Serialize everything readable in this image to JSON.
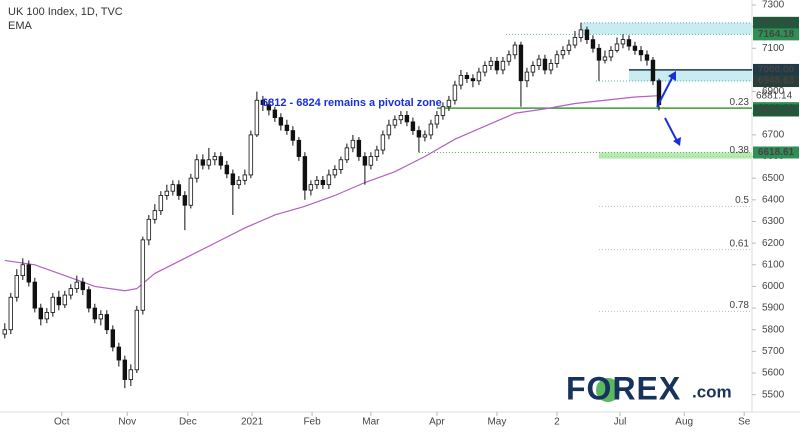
{
  "chart_data": {
    "type": "candlestick",
    "title": "UK 100 Index, 1D, TVC",
    "subtitle": "EMA",
    "annotation": "6812 - 6824 remains a pivotal zone",
    "watermark": {
      "brand": "FOREX",
      "suffix": ".com"
    },
    "up_color": "#ffffff",
    "down_color": "#111111",
    "open": [
      5780,
      5800,
      5950,
      6050,
      6100,
      6020,
      5900,
      5850,
      5880,
      5950,
      5915,
      5960,
      5990,
      6020,
      5985,
      5900,
      5850,
      5870,
      5800,
      5720,
      5660,
      5570,
      5615,
      5890,
      6215,
      6310,
      6350,
      6420,
      6440,
      6470,
      6420,
      6375,
      6500,
      6585,
      6560,
      6585,
      6600,
      6560,
      6520,
      6470,
      6490,
      6515,
      6700,
      6860,
      6840,
      6815,
      6780,
      6745,
      6720,
      6675,
      6600,
      6445,
      6470,
      6490,
      6470,
      6515,
      6540,
      6585,
      6640,
      6675,
      6600,
      6560,
      6600,
      6630,
      6700,
      6745,
      6770,
      6790,
      6760,
      6720,
      6690,
      6700,
      6750,
      6790,
      6830,
      6860,
      6930,
      6975,
      6960,
      6950,
      6990,
      7020,
      7040,
      7000,
      7040,
      7070,
      7115,
      6950,
      6990,
      7020,
      7050,
      7000,
      7030,
      7070,
      7090,
      7115,
      7150,
      7185,
      7140,
      7100,
      7045,
      7060,
      7090,
      7120,
      7140,
      7110,
      7090,
      7070,
      7045,
      6950
    ],
    "high": [
      5830,
      5970,
      6080,
      6130,
      6120,
      6040,
      5920,
      5900,
      5970,
      5980,
      5980,
      6010,
      6050,
      6040,
      6000,
      5920,
      5890,
      5890,
      5820,
      5740,
      5680,
      5640,
      5910,
      6230,
      6330,
      6380,
      6440,
      6470,
      6490,
      6490,
      6440,
      6520,
      6610,
      6610,
      6640,
      6620,
      6620,
      6580,
      6540,
      6510,
      6540,
      6720,
      6900,
      6880,
      6860,
      6830,
      6800,
      6770,
      6740,
      6690,
      6620,
      6490,
      6510,
      6510,
      6540,
      6560,
      6600,
      6660,
      6700,
      6690,
      6620,
      6620,
      6650,
      6720,
      6770,
      6790,
      6810,
      6810,
      6780,
      6740,
      6720,
      6770,
      6810,
      6850,
      6880,
      6950,
      7000,
      6990,
      6980,
      7010,
      7040,
      7060,
      7060,
      7060,
      7090,
      7130,
      7130,
      7010,
      7040,
      7070,
      7070,
      7050,
      7090,
      7110,
      7140,
      7180,
      7218,
      7200,
      7160,
      7120,
      7090,
      7110,
      7150,
      7165,
      7160,
      7130,
      7110,
      7090,
      7060,
      6960
    ],
    "low": [
      5760,
      5780,
      5930,
      6030,
      6000,
      5880,
      5820,
      5830,
      5860,
      5890,
      5900,
      5940,
      5970,
      5960,
      5880,
      5830,
      5820,
      5780,
      5700,
      5630,
      5530,
      5540,
      5600,
      5870,
      6190,
      6290,
      6330,
      6400,
      6420,
      6400,
      6260,
      6360,
      6480,
      6540,
      6540,
      6560,
      6540,
      6500,
      6330,
      6450,
      6470,
      6500,
      6690,
      6810,
      6790,
      6760,
      6720,
      6700,
      6650,
      6580,
      6400,
      6420,
      6450,
      6450,
      6450,
      6500,
      6520,
      6570,
      6620,
      6580,
      6470,
      6540,
      6580,
      6610,
      6680,
      6730,
      6750,
      6740,
      6700,
      6620,
      6670,
      6680,
      6730,
      6770,
      6810,
      6840,
      6910,
      6940,
      6920,
      6930,
      6970,
      7000,
      6980,
      6980,
      7020,
      7050,
      6830,
      6920,
      6970,
      7000,
      6980,
      6980,
      7010,
      7050,
      7070,
      7100,
      7130,
      7120,
      7080,
      6950,
      7030,
      7040,
      7080,
      7100,
      7090,
      7070,
      7040,
      7020,
      6930,
      6813
    ],
    "close": [
      5800,
      5950,
      6050,
      6100,
      6020,
      5900,
      5850,
      5880,
      5950,
      5915,
      5960,
      5990,
      6020,
      5985,
      5900,
      5850,
      5870,
      5800,
      5720,
      5660,
      5570,
      5615,
      5890,
      6215,
      6310,
      6350,
      6420,
      6440,
      6470,
      6420,
      6375,
      6500,
      6585,
      6560,
      6585,
      6600,
      6560,
      6520,
      6470,
      6490,
      6515,
      6700,
      6860,
      6840,
      6815,
      6780,
      6745,
      6720,
      6675,
      6600,
      6445,
      6470,
      6490,
      6470,
      6515,
      6540,
      6585,
      6640,
      6675,
      6600,
      6560,
      6600,
      6630,
      6700,
      6745,
      6770,
      6790,
      6760,
      6720,
      6690,
      6700,
      6750,
      6790,
      6830,
      6860,
      6930,
      6975,
      6960,
      6950,
      6990,
      7020,
      7040,
      7000,
      7040,
      7070,
      7115,
      6950,
      6990,
      7020,
      7050,
      7000,
      7030,
      7070,
      7090,
      7115,
      7150,
      7185,
      7140,
      7100,
      7045,
      7060,
      7090,
      7120,
      7140,
      7110,
      7090,
      7070,
      7045,
      6950,
      6840
    ],
    "ema": {
      "color": "#b35fc4",
      "x": [
        0,
        5,
        10,
        15,
        20,
        22,
        25,
        30,
        35,
        40,
        45,
        50,
        55,
        60,
        65,
        70,
        75,
        80,
        85,
        90,
        95,
        100,
        105,
        109
      ],
      "values": [
        6120,
        6100,
        6050,
        6000,
        5980,
        5990,
        6060,
        6130,
        6200,
        6270,
        6330,
        6370,
        6420,
        6480,
        6530,
        6600,
        6680,
        6740,
        6800,
        6820,
        6845,
        6860,
        6875,
        6881.14
      ],
      "last_label": {
        "value": 6881.14,
        "label": "6881.14"
      }
    },
    "xlim": [
      -0.8,
      124.5
    ],
    "xticks": [
      {
        "value": 9.5,
        "label": "Oct"
      },
      {
        "value": 20.4,
        "label": "Nov"
      },
      {
        "value": 30.5,
        "label": "Dec"
      },
      {
        "value": 41.2,
        "label": "2021"
      },
      {
        "value": 51.2,
        "label": "Feb"
      },
      {
        "value": 61,
        "label": "Mar"
      },
      {
        "value": 72,
        "label": "Apr"
      },
      {
        "value": 82,
        "label": "May"
      },
      {
        "value": 92,
        "label": "2"
      },
      {
        "value": 102.5,
        "label": "Jul"
      },
      {
        "value": 113.2,
        "label": "Aug"
      },
      {
        "value": 123.2,
        "label": "Se"
      }
    ],
    "ylim": [
      5420,
      7323
    ],
    "yticks": [
      5500,
      5600,
      5700,
      5800,
      5900,
      6000,
      6100,
      6200,
      6300,
      6400,
      6500,
      6600,
      6700,
      6800,
      6900,
      7000,
      7100,
      7200,
      7300
    ],
    "levels": [
      {
        "value": 7217.54,
        "label": "7217.54",
        "color": "#1d5a3a"
      },
      {
        "value": 7164.18,
        "label": "7164.18",
        "color": "#2f8f55"
      },
      {
        "value": 7000,
        "label": "7000.00",
        "color": "#1f3a48"
      },
      {
        "value": 6948.63,
        "label": "6948.63",
        "color": "#2b3f3a"
      },
      {
        "value": 6823.6,
        "label": "6823.60",
        "color": "#2f8f55"
      },
      {
        "value": 6812.78,
        "label": "6812.78",
        "color": "#1d5a3a"
      },
      {
        "value": 6618.61,
        "label": "6618.61",
        "color": "#2f8f55"
      }
    ],
    "zones": [
      {
        "low": 7164.18,
        "high": 7217.54,
        "from": 96,
        "color": "#c8ecf1"
      },
      {
        "low": 6948.63,
        "high": 7000,
        "from": 104,
        "color": "#c8ecf1"
      },
      {
        "low": 6590,
        "high": 6618.61,
        "from": 99,
        "color": "#b5ecb0"
      }
    ],
    "lines": [
      {
        "value": 7217.54,
        "from": 96,
        "color": "#5aa",
        "dash": true
      },
      {
        "value": 7164.18,
        "from": 83.5,
        "color": "#5aa",
        "dash": true
      },
      {
        "value": 7000,
        "from": 104,
        "color": "#1f3a48",
        "dash": false
      },
      {
        "value": 6948.63,
        "from": 98.5,
        "color": "#5aa",
        "dash": true
      },
      {
        "value": 6823.6,
        "from": 72,
        "color": "#3a9d3a",
        "dash": false
      },
      {
        "value": 6618.61,
        "from": 69,
        "color": "#5a5",
        "dash": true
      }
    ],
    "fib": [
      {
        "ratio": 0.23,
        "value": 6823.6
      },
      {
        "ratio": 0.38,
        "value": 6600
      },
      {
        "ratio": 0.5,
        "value": 6370
      },
      {
        "ratio": 0.61,
        "value": 6170
      },
      {
        "ratio": 0.78,
        "value": 5885
      }
    ],
    "fib_from": 99
  }
}
